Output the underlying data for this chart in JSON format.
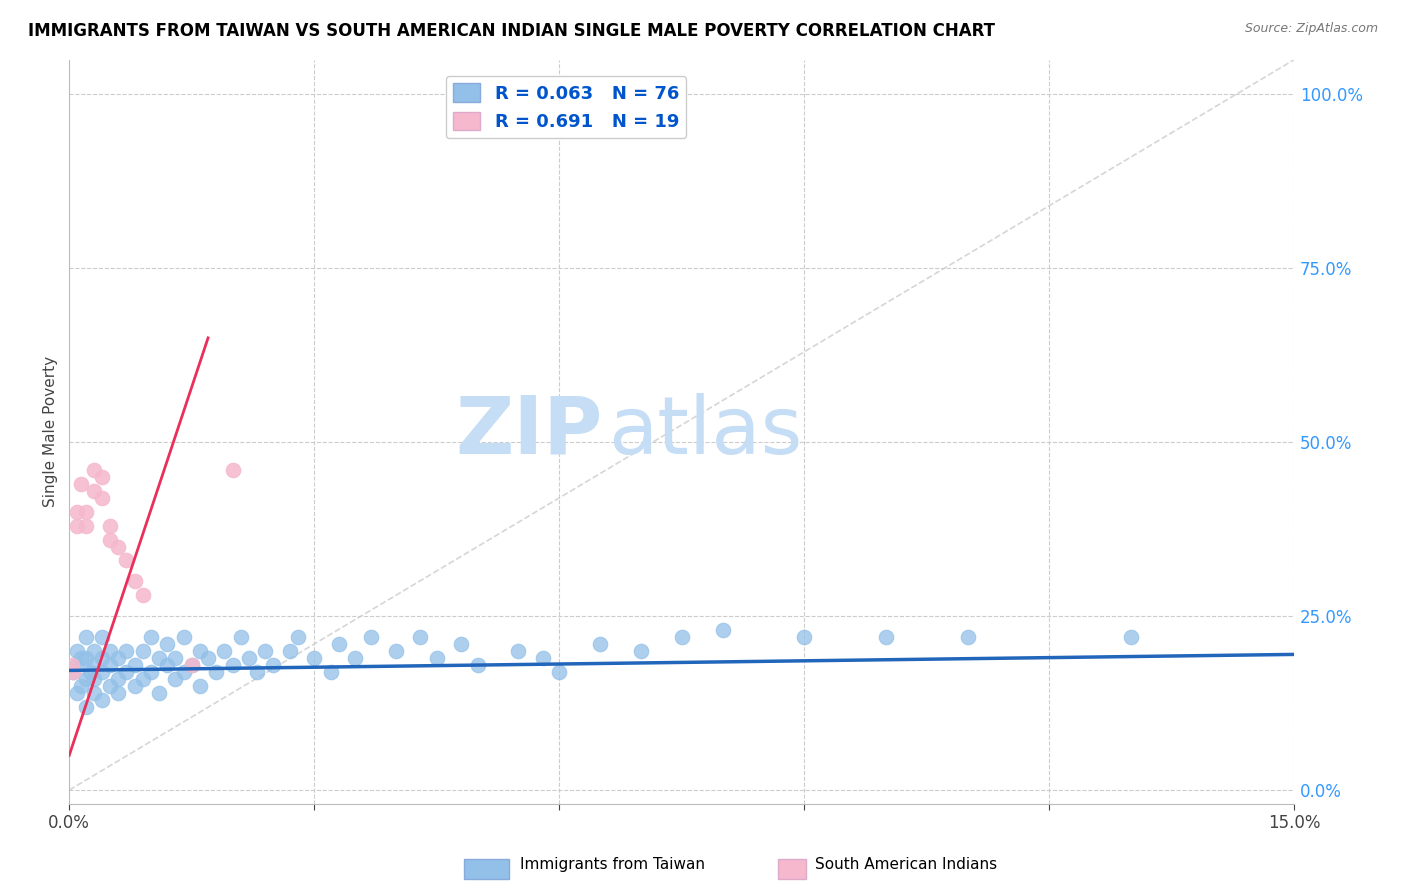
{
  "title": "IMMIGRANTS FROM TAIWAN VS SOUTH AMERICAN INDIAN SINGLE MALE POVERTY CORRELATION CHART",
  "source_text": "Source: ZipAtlas.com",
  "ylabel": "Single Male Poverty",
  "xlim": [
    0.0,
    0.15
  ],
  "ylim": [
    -0.02,
    1.05
  ],
  "xtick_vals": [
    0.0,
    0.03,
    0.06,
    0.09,
    0.12,
    0.15
  ],
  "xtick_labels": [
    "0.0%",
    "",
    "",
    "",
    "",
    "15.0%"
  ],
  "yticks_right": [
    0.0,
    0.25,
    0.5,
    0.75,
    1.0
  ],
  "ytick_labels_right": [
    "0.0%",
    "25.0%",
    "50.0%",
    "75.0%",
    "100.0%"
  ],
  "legend_blue_r": "0.063",
  "legend_blue_n": "76",
  "legend_pink_r": "0.691",
  "legend_pink_n": "19",
  "blue_color": "#92c0e8",
  "pink_color": "#f5b8cc",
  "blue_line_color": "#2266bb",
  "pink_line_color": "#e8305a",
  "ref_line_color": "#cccccc",
  "watermark_zip": "ZIP",
  "watermark_atlas": "atlas",
  "watermark_color": "#c5ddf5",
  "blue_scatter_x": [
    0.0005,
    0.001,
    0.001,
    0.001,
    0.0015,
    0.0015,
    0.002,
    0.002,
    0.002,
    0.002,
    0.0025,
    0.003,
    0.003,
    0.003,
    0.003,
    0.004,
    0.004,
    0.004,
    0.004,
    0.005,
    0.005,
    0.005,
    0.006,
    0.006,
    0.006,
    0.007,
    0.007,
    0.008,
    0.008,
    0.009,
    0.009,
    0.01,
    0.01,
    0.011,
    0.011,
    0.012,
    0.012,
    0.013,
    0.013,
    0.014,
    0.014,
    0.015,
    0.016,
    0.016,
    0.017,
    0.018,
    0.019,
    0.02,
    0.021,
    0.022,
    0.023,
    0.024,
    0.025,
    0.027,
    0.028,
    0.03,
    0.032,
    0.033,
    0.035,
    0.037,
    0.04,
    0.043,
    0.045,
    0.048,
    0.05,
    0.055,
    0.058,
    0.06,
    0.065,
    0.07,
    0.075,
    0.08,
    0.09,
    0.1,
    0.11,
    0.13
  ],
  "blue_scatter_y": [
    0.17,
    0.14,
    0.18,
    0.2,
    0.15,
    0.19,
    0.12,
    0.16,
    0.19,
    0.22,
    0.17,
    0.14,
    0.18,
    0.2,
    0.16,
    0.13,
    0.17,
    0.19,
    0.22,
    0.15,
    0.18,
    0.2,
    0.16,
    0.19,
    0.14,
    0.17,
    0.2,
    0.15,
    0.18,
    0.16,
    0.2,
    0.17,
    0.22,
    0.19,
    0.14,
    0.18,
    0.21,
    0.16,
    0.19,
    0.17,
    0.22,
    0.18,
    0.2,
    0.15,
    0.19,
    0.17,
    0.2,
    0.18,
    0.22,
    0.19,
    0.17,
    0.2,
    0.18,
    0.2,
    0.22,
    0.19,
    0.17,
    0.21,
    0.19,
    0.22,
    0.2,
    0.22,
    0.19,
    0.21,
    0.18,
    0.2,
    0.19,
    0.17,
    0.21,
    0.2,
    0.22,
    0.23,
    0.22,
    0.22,
    0.22,
    0.22
  ],
  "pink_scatter_x": [
    0.0004,
    0.0005,
    0.001,
    0.001,
    0.0015,
    0.002,
    0.002,
    0.003,
    0.003,
    0.004,
    0.004,
    0.005,
    0.005,
    0.006,
    0.007,
    0.008,
    0.009,
    0.015,
    0.02
  ],
  "pink_scatter_y": [
    0.18,
    0.17,
    0.38,
    0.4,
    0.44,
    0.38,
    0.4,
    0.43,
    0.46,
    0.45,
    0.42,
    0.38,
    0.36,
    0.35,
    0.33,
    0.3,
    0.28,
    0.18,
    0.46
  ],
  "blue_line_x": [
    0.0,
    0.15
  ],
  "blue_line_y": [
    0.172,
    0.195
  ],
  "pink_line_x": [
    0.0,
    0.017
  ],
  "pink_line_y": [
    0.05,
    0.65
  ]
}
